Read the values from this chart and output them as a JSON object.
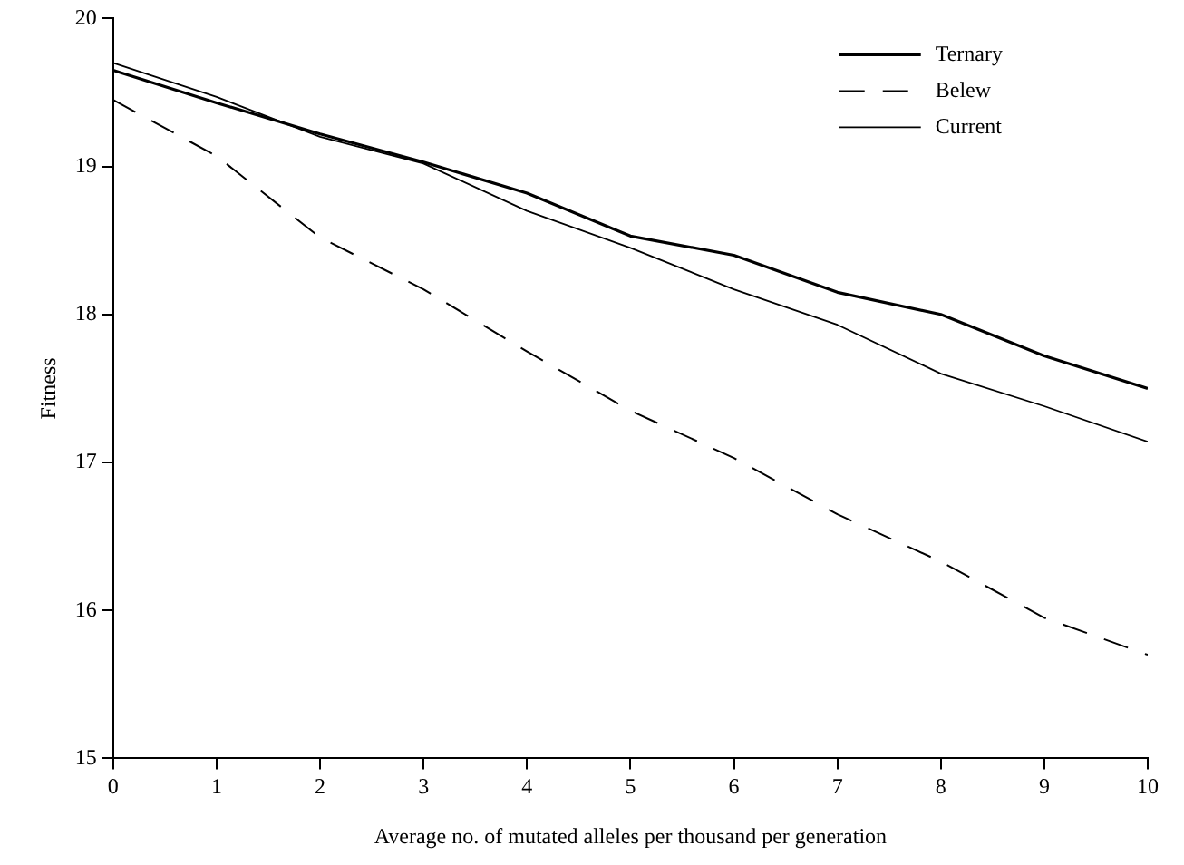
{
  "chart_data": {
    "type": "line",
    "xlabel": "Average no. of mutated alleles per thousand per generation",
    "ylabel": "Fitness",
    "x": [
      0,
      1,
      2,
      3,
      4,
      5,
      6,
      7,
      8,
      9,
      10
    ],
    "series": [
      {
        "name": "Ternary",
        "color": "#000000",
        "line_style": "solid",
        "values": [
          19.65,
          19.43,
          19.22,
          19.03,
          18.82,
          18.53,
          18.4,
          18.15,
          18.0,
          17.72,
          17.5
        ]
      },
      {
        "name": "Belew",
        "color": "#000000",
        "line_style": "dashed",
        "values": [
          19.45,
          19.07,
          18.52,
          18.17,
          17.75,
          17.35,
          17.03,
          16.65,
          16.33,
          15.95,
          15.7
        ]
      },
      {
        "name": "Current",
        "color": "#000000",
        "line_style": "solid",
        "values": [
          19.7,
          19.47,
          19.2,
          19.02,
          18.7,
          18.45,
          18.17,
          17.93,
          17.6,
          17.38,
          17.14
        ]
      }
    ],
    "xlim": [
      0,
      10
    ],
    "xticks": [
      0,
      1,
      2,
      3,
      4,
      5,
      6,
      7,
      8,
      9,
      10
    ],
    "ylim": [
      15,
      20
    ],
    "yticks": [
      15,
      16,
      17,
      18,
      19,
      20
    ],
    "grid": false,
    "legend": "top right",
    "marker": "none"
  }
}
